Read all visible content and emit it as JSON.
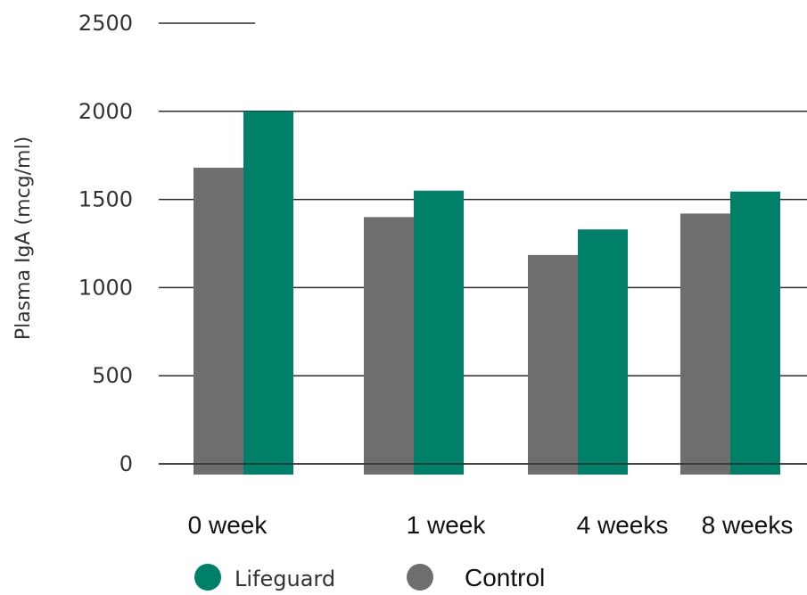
{
  "chart_data": {
    "type": "bar",
    "ylabel": "Plasma IgA (mcg/ml)",
    "ylim": [
      0,
      2500
    ],
    "yticks": [
      "0",
      "500",
      "1000",
      "1500",
      "2000",
      "2500"
    ],
    "categories": [
      "0 week",
      "1 week",
      "4 weeks",
      "8 weeks"
    ],
    "series": [
      {
        "name": "Control",
        "color": "#6e6e6e",
        "values": [
          1680,
          1400,
          1185,
          1420
        ]
      },
      {
        "name": "Lifeguard",
        "color": "#008069",
        "values": [
          2000,
          1550,
          1330,
          1545
        ]
      }
    ],
    "legend": [
      {
        "label": "Lifeguard",
        "color": "#008069"
      },
      {
        "label": "Control",
        "color": "#6e6e6e"
      }
    ],
    "grid": true,
    "legend_position": "bottom"
  }
}
